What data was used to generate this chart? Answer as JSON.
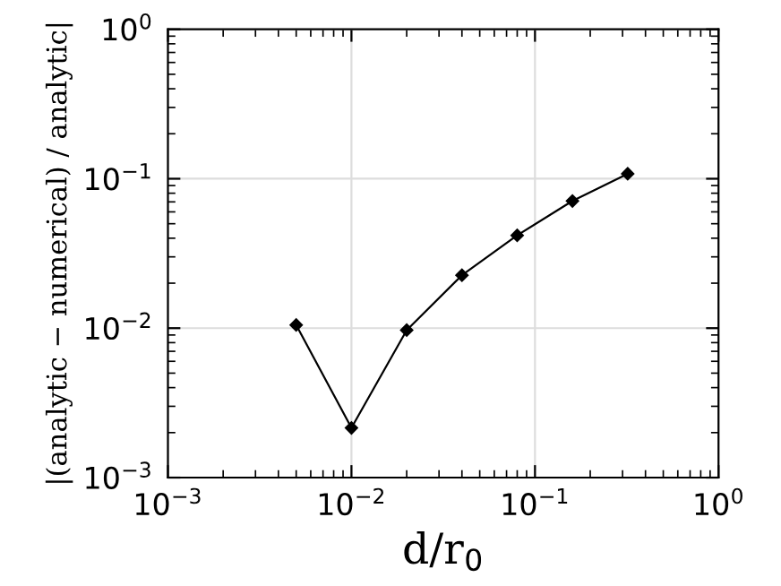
{
  "chart_data": {
    "type": "line",
    "xlabel": "d/r$_{0}$",
    "ylabel": "|(analytic − numerical) / analytic|",
    "x": [
      0.005,
      0.01,
      0.02,
      0.04,
      0.08,
      0.16,
      0.32
    ],
    "series": [
      {
        "color": "#000000",
        "values": [
          0.0105,
          0.00215,
          0.0097,
          0.0226,
          0.0418,
          0.071,
          0.108
        ]
      }
    ],
    "log": "xy",
    "xlim": [
      0.001,
      1
    ],
    "ylim": [
      0.001,
      1
    ],
    "xticks": [
      {
        "value": 0.001,
        "label": "10$^{−3}$"
      },
      {
        "value": 0.01,
        "label": "10$^{−2}$"
      },
      {
        "value": 0.1,
        "label": "10$^{−1}$"
      },
      {
        "value": 1,
        "label": "10$^{0}$"
      }
    ],
    "yticks": [
      {
        "value": 0.001,
        "label": "10$^{−3}$"
      },
      {
        "value": 0.01,
        "label": "10$^{−2}$"
      },
      {
        "value": 0.1,
        "label": "10$^{−1}$"
      },
      {
        "value": 1,
        "label": "10$^{0}$"
      }
    ],
    "grid": true,
    "marker": "diamond",
    "line_style": "solid"
  }
}
